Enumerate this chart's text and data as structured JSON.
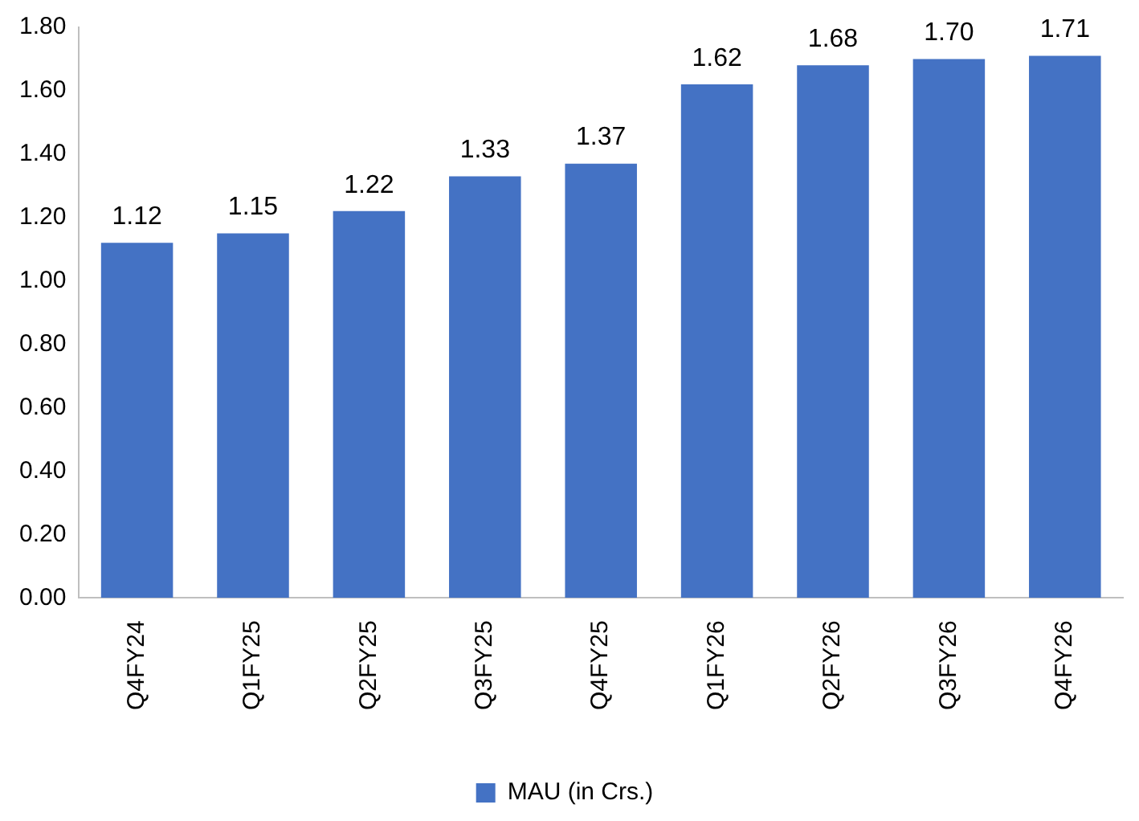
{
  "chart_data": {
    "type": "bar",
    "categories": [
      "Q4FY24",
      "Q1FY25",
      "Q2FY25",
      "Q3FY25",
      "Q4FY25",
      "Q1FY26",
      "Q2FY26",
      "Q3FY26",
      "Q4FY26"
    ],
    "series": [
      {
        "name": "MAU (in Crs.)",
        "color": "#4472c4",
        "values": [
          1.12,
          1.15,
          1.22,
          1.33,
          1.37,
          1.62,
          1.68,
          1.7,
          1.71
        ],
        "value_labels": [
          "1.12",
          "1.15",
          "1.22",
          "1.33",
          "1.37",
          "1.62",
          "1.68",
          "1.70",
          "1.71"
        ]
      }
    ],
    "ylim": [
      0,
      1.8
    ],
    "yticks": [
      {
        "value": 0,
        "label": "0.00"
      },
      {
        "value": 0.2,
        "label": "0.20"
      },
      {
        "value": 0.4,
        "label": "0.40"
      },
      {
        "value": 0.6,
        "label": "0.60"
      },
      {
        "value": 0.8,
        "label": "0.80"
      },
      {
        "value": 1,
        "label": "1.00"
      },
      {
        "value": 1.2,
        "label": "1.20"
      },
      {
        "value": 1.4,
        "label": "1.40"
      },
      {
        "value": 1.6,
        "label": "1.60"
      },
      {
        "value": 1.8,
        "label": "1.80"
      }
    ],
    "grid": false,
    "legend": "bottom"
  }
}
